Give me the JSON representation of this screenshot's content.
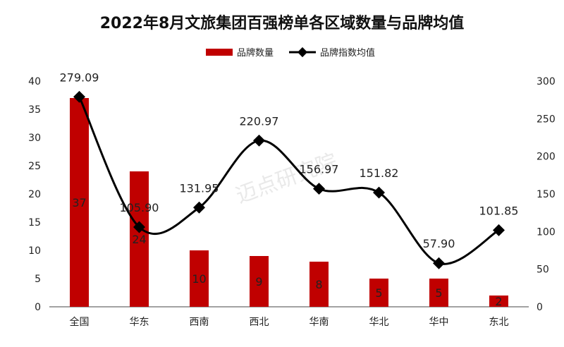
{
  "chart_data": {
    "type": "bar",
    "title": "2022年8月文旅集团百强榜单各区域数量与品牌均值",
    "categories": [
      "全国",
      "华东",
      "西南",
      "西北",
      "华南",
      "华北",
      "华中",
      "东北"
    ],
    "series": [
      {
        "name": "品牌数量",
        "type": "bar",
        "axis": "left",
        "color": "#c00000",
        "values": [
          37,
          24,
          10,
          9,
          8,
          5,
          5,
          2
        ],
        "labels": [
          "37",
          "24",
          "10",
          "9",
          "8",
          "5",
          "5",
          "2"
        ]
      },
      {
        "name": "品牌指数均值",
        "type": "line",
        "axis": "right",
        "color": "#000000",
        "values": [
          279.09,
          105.9,
          131.95,
          220.97,
          156.97,
          151.82,
          57.9,
          101.85
        ],
        "labels": [
          "279.09",
          "105.90",
          "131.95",
          "220.97",
          "156.97",
          "151.82",
          "57.90",
          "101.85"
        ]
      }
    ],
    "y_left": {
      "min": 0,
      "max": 40,
      "ticks": [
        "0",
        "5",
        "10",
        "15",
        "20",
        "25",
        "30",
        "35",
        "40"
      ]
    },
    "y_right": {
      "min": 0,
      "max": 300,
      "ticks": [
        "0",
        "50",
        "100",
        "150",
        "200",
        "250",
        "300"
      ]
    },
    "legend_position": "top-center",
    "grid": false,
    "watermark": "迈点研究院"
  }
}
